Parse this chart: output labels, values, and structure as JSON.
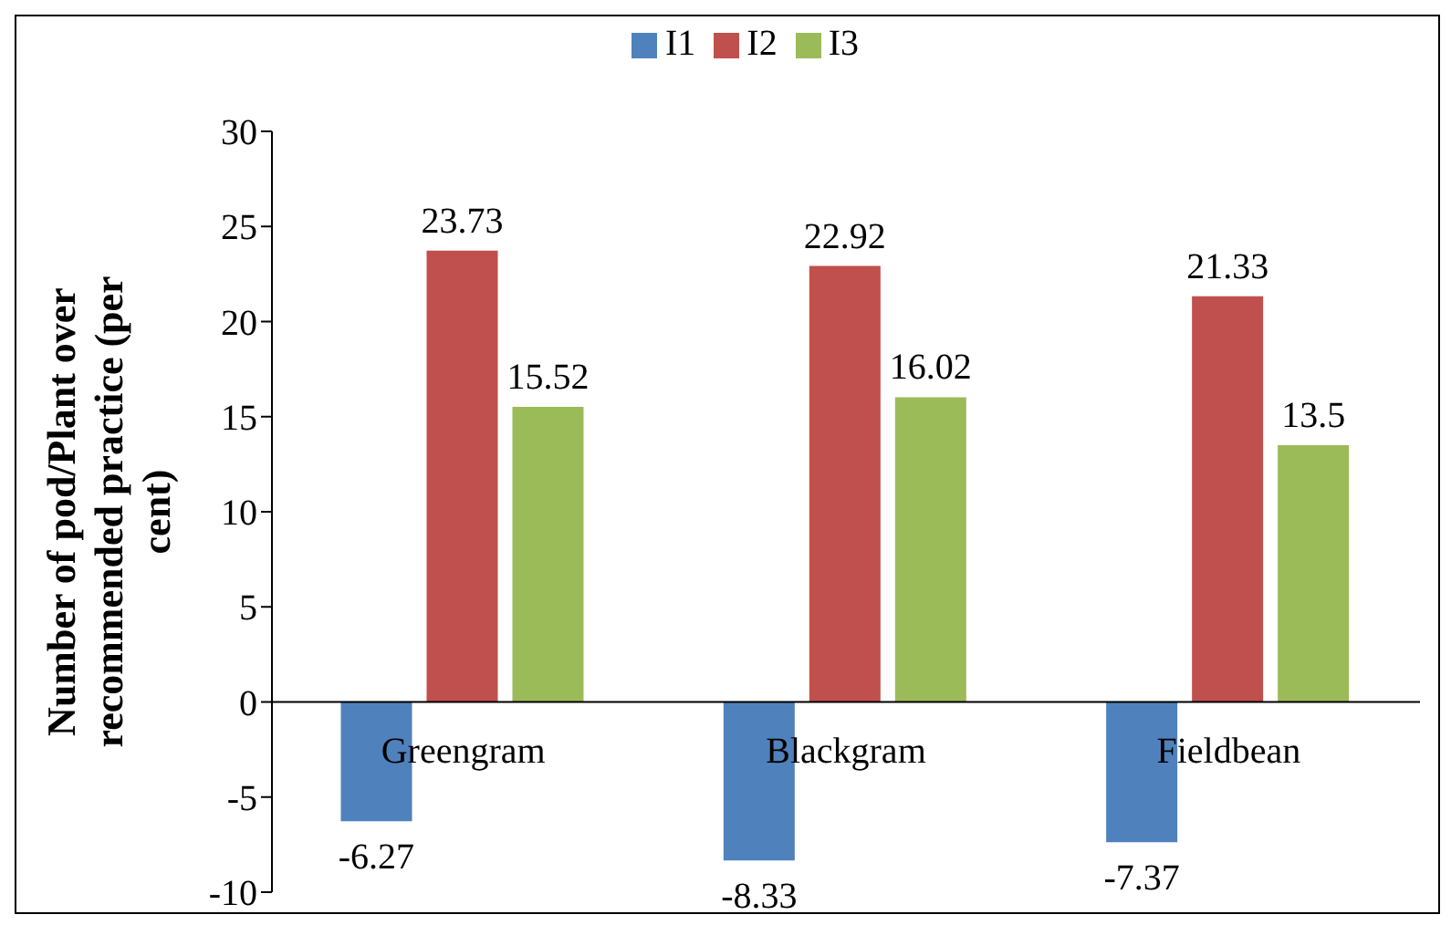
{
  "chart_data": {
    "type": "bar",
    "ylabel": "Number of pod/Plant over recommended practice (per cent)",
    "categories": [
      "Greengram",
      "Blackgram",
      "Fieldbean"
    ],
    "series": [
      {
        "name": "I1",
        "color": "#4f81bd",
        "values": [
          -6.27,
          -8.33,
          -7.37
        ]
      },
      {
        "name": "I2",
        "color": "#c0504d",
        "values": [
          23.73,
          22.92,
          21.33
        ]
      },
      {
        "name": "I3",
        "color": "#9bbb59",
        "values": [
          15.52,
          16.02,
          13.5
        ]
      }
    ],
    "ylim": [
      -10,
      30
    ],
    "yticks": [
      -10,
      -5,
      0,
      5,
      10,
      15,
      20,
      25,
      30
    ],
    "legend": "top",
    "data_labels": true
  }
}
